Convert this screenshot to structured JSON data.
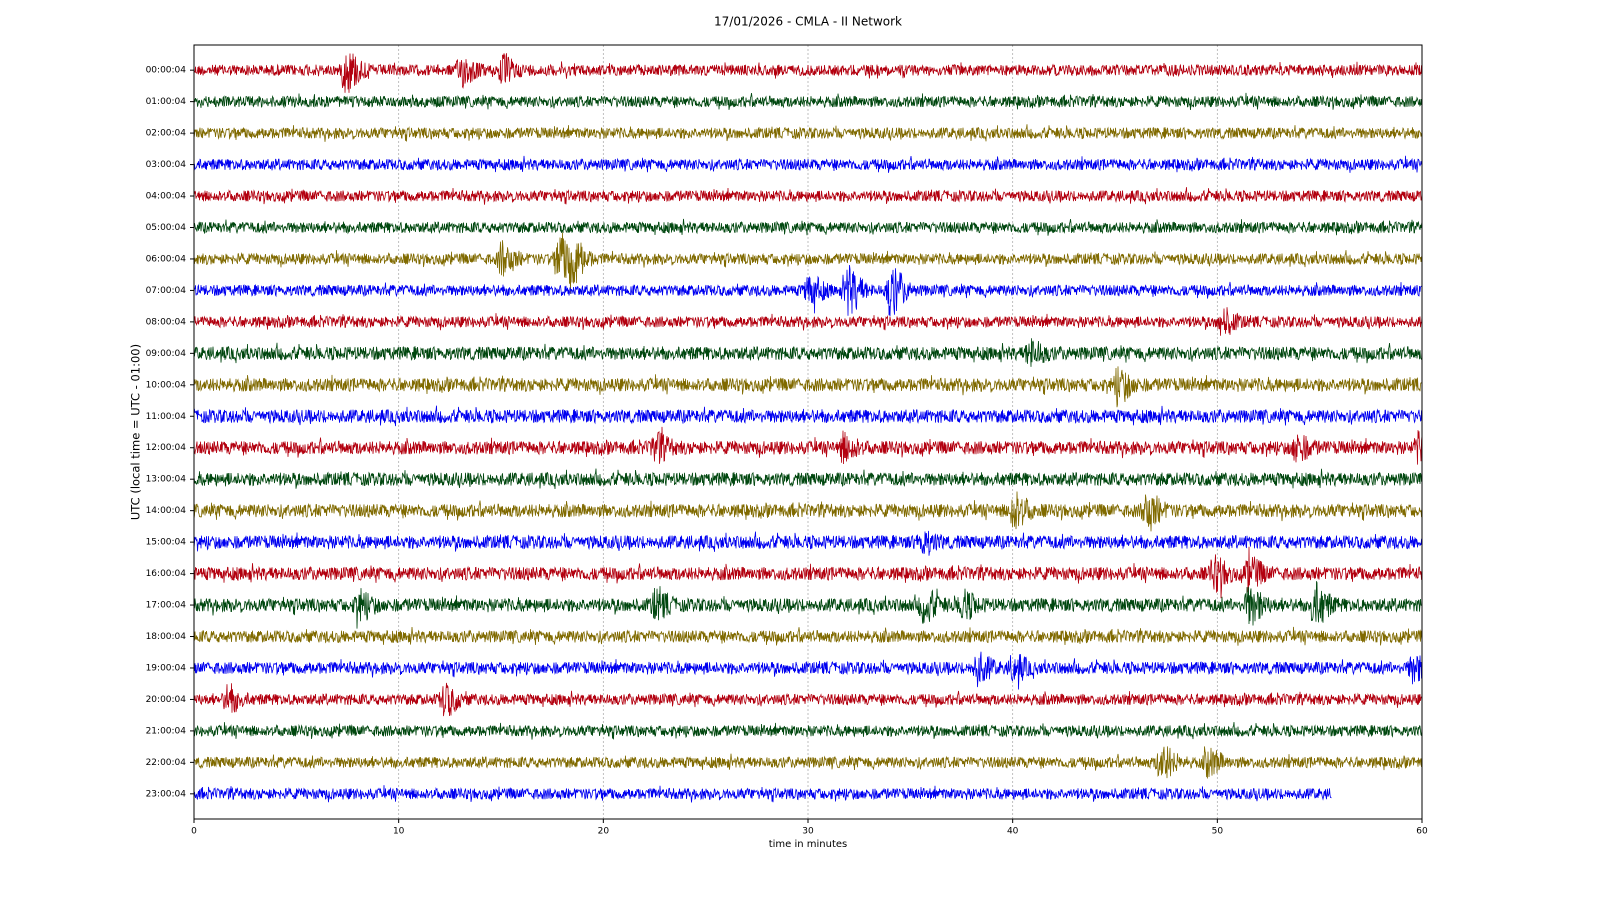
{
  "chart_data": {
    "type": "helicorder",
    "title": "17/01/2026 - CMLA - II Network",
    "xlabel": "time in minutes",
    "ylabel": "UTC (local time = UTC - 01:00)",
    "xlim": [
      0,
      60
    ],
    "xticks": [
      0,
      10,
      20,
      30,
      40,
      50,
      60
    ],
    "grid": true,
    "traces": [
      {
        "label": "00:00:04",
        "color": "#b3000f",
        "noise": 1,
        "end": 60,
        "events": [
          {
            "x": 7.4,
            "amp": 3.5
          },
          {
            "x": 13,
            "amp": 2.5
          },
          {
            "x": 15,
            "amp": 2
          }
        ]
      },
      {
        "label": "01:00:04",
        "color": "#00470f",
        "noise": 1,
        "end": 60,
        "events": []
      },
      {
        "label": "02:00:04",
        "color": "#806a00",
        "noise": 1,
        "end": 60,
        "events": []
      },
      {
        "label": "03:00:04",
        "color": "#0000f0",
        "noise": 1,
        "end": 60,
        "events": []
      },
      {
        "label": "04:00:04",
        "color": "#b3000f",
        "noise": 1,
        "end": 60,
        "events": []
      },
      {
        "label": "05:00:04",
        "color": "#00470f",
        "noise": 1,
        "end": 60,
        "events": []
      },
      {
        "label": "06:00:04",
        "color": "#806a00",
        "noise": 1,
        "end": 60,
        "events": [
          {
            "x": 15,
            "amp": 2.5
          },
          {
            "x": 17.8,
            "amp": 4
          },
          {
            "x": 18.4,
            "amp": 3.5
          }
        ]
      },
      {
        "label": "07:00:04",
        "color": "#0000f0",
        "noise": 1,
        "end": 60,
        "events": [
          {
            "x": 30,
            "amp": 2.5
          },
          {
            "x": 31.9,
            "amp": 4
          },
          {
            "x": 34,
            "amp": 4
          }
        ]
      },
      {
        "label": "08:00:04",
        "color": "#b3000f",
        "noise": 1,
        "end": 60,
        "events": [
          {
            "x": 50.2,
            "amp": 2
          }
        ]
      },
      {
        "label": "09:00:04",
        "color": "#00470f",
        "noise": 1.2,
        "end": 60,
        "events": [
          {
            "x": 40.8,
            "amp": 2
          }
        ]
      },
      {
        "label": "10:00:04",
        "color": "#806a00",
        "noise": 1.2,
        "end": 60,
        "events": [
          {
            "x": 45.1,
            "amp": 2.5
          }
        ]
      },
      {
        "label": "11:00:04",
        "color": "#0000f0",
        "noise": 1.2,
        "end": 60,
        "events": []
      },
      {
        "label": "12:00:04",
        "color": "#b3000f",
        "noise": 1.2,
        "end": 60,
        "events": [
          {
            "x": 22.5,
            "amp": 2
          },
          {
            "x": 31.7,
            "amp": 2
          },
          {
            "x": 53.8,
            "amp": 2
          },
          {
            "x": 59.8,
            "amp": 2
          }
        ]
      },
      {
        "label": "13:00:04",
        "color": "#00470f",
        "noise": 1.2,
        "end": 60,
        "events": []
      },
      {
        "label": "14:00:04",
        "color": "#806a00",
        "noise": 1.2,
        "end": 60,
        "events": [
          {
            "x": 40,
            "amp": 3
          },
          {
            "x": 46.5,
            "amp": 3
          }
        ]
      },
      {
        "label": "15:00:04",
        "color": "#0000f0",
        "noise": 1.2,
        "end": 60,
        "events": [
          {
            "x": 35.5,
            "amp": 1.8
          }
        ]
      },
      {
        "label": "16:00:04",
        "color": "#b3000f",
        "noise": 1.2,
        "end": 60,
        "events": [
          {
            "x": 49.8,
            "amp": 2.5
          },
          {
            "x": 51.5,
            "amp": 2.5
          }
        ]
      },
      {
        "label": "17:00:04",
        "color": "#00470f",
        "noise": 1.2,
        "end": 60,
        "events": [
          {
            "x": 8,
            "amp": 2
          },
          {
            "x": 22.5,
            "amp": 2
          },
          {
            "x": 35.6,
            "amp": 2.5
          },
          {
            "x": 37.5,
            "amp": 2
          },
          {
            "x": 51.5,
            "amp": 3
          },
          {
            "x": 54.7,
            "amp": 3.5
          }
        ]
      },
      {
        "label": "18:00:04",
        "color": "#806a00",
        "noise": 1.1,
        "end": 60,
        "events": []
      },
      {
        "label": "19:00:04",
        "color": "#0000f0",
        "noise": 1.1,
        "end": 60,
        "events": [
          {
            "x": 38.2,
            "amp": 2.5
          },
          {
            "x": 40,
            "amp": 2
          },
          {
            "x": 59.5,
            "amp": 2
          }
        ]
      },
      {
        "label": "20:00:04",
        "color": "#b3000f",
        "noise": 1,
        "end": 60,
        "events": [
          {
            "x": 1.6,
            "amp": 2
          },
          {
            "x": 12.2,
            "amp": 2.5
          }
        ]
      },
      {
        "label": "21:00:04",
        "color": "#00470f",
        "noise": 1,
        "end": 60,
        "events": []
      },
      {
        "label": "22:00:04",
        "color": "#806a00",
        "noise": 1,
        "end": 60,
        "events": [
          {
            "x": 47.2,
            "amp": 3
          },
          {
            "x": 49.5,
            "amp": 2
          }
        ]
      },
      {
        "label": "23:00:04",
        "color": "#0000f0",
        "noise": 1,
        "end": 55.6,
        "events": []
      }
    ]
  }
}
